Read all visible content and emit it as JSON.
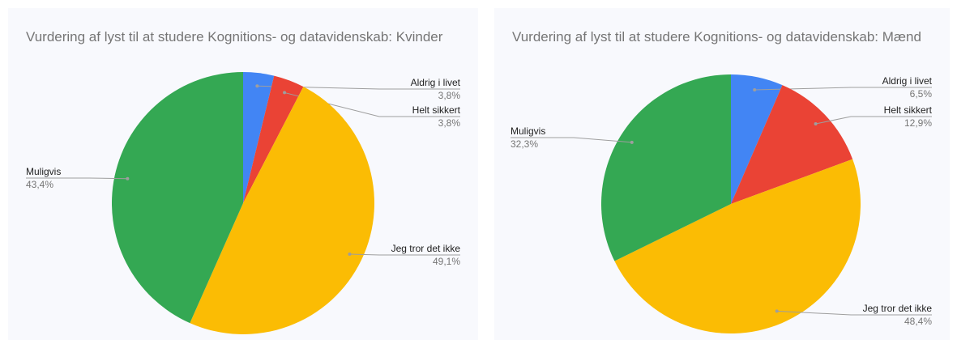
{
  "chart_data": [
    {
      "type": "pie",
      "title": "Vurdering af lyst til at studere Kognitions- og datavidenskab: Kvinder",
      "categories": [
        "Aldrig i livet",
        "Helt sikkert",
        "Jeg tror det ikke",
        "Muligvis"
      ],
      "values": [
        3.8,
        3.8,
        49.1,
        43.4
      ],
      "value_labels": [
        "3,8%",
        "3,8%",
        "49,1%",
        "43,4%"
      ],
      "colors": [
        "#4285f4",
        "#ea4335",
        "#fbbc04",
        "#34a853"
      ]
    },
    {
      "type": "pie",
      "title": "Vurdering af lyst til at studere Kognitions- og datavidenskab: Mænd",
      "categories": [
        "Aldrig i livet",
        "Helt sikkert",
        "Jeg tror det ikke",
        "Muligvis"
      ],
      "values": [
        6.5,
        12.9,
        48.4,
        32.3
      ],
      "value_labels": [
        "6,5%",
        "12,9%",
        "48,4%",
        "32,3%"
      ],
      "colors": [
        "#4285f4",
        "#ea4335",
        "#fbbc04",
        "#34a853"
      ]
    }
  ]
}
